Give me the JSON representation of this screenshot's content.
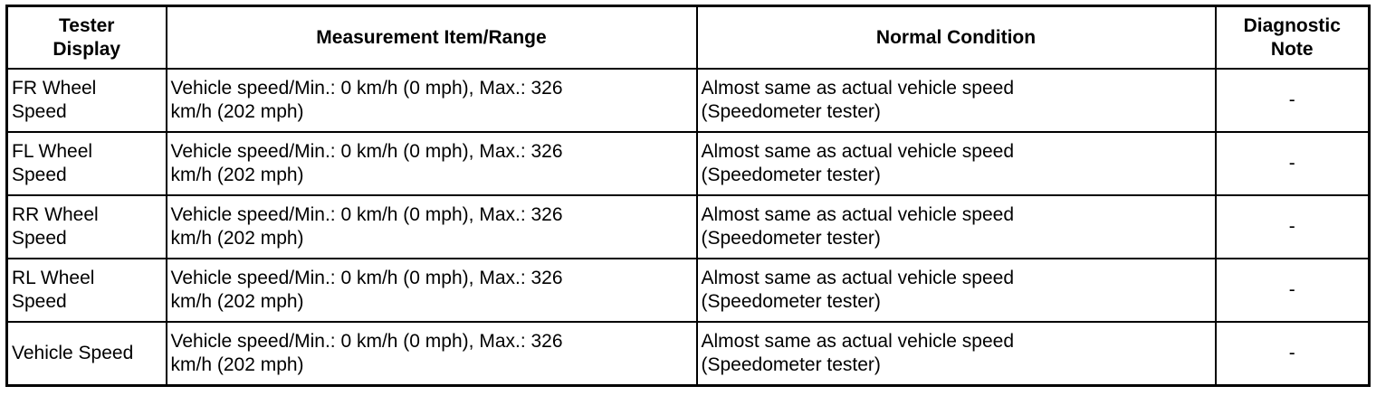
{
  "table": {
    "header": [
      "Tester\nDisplay",
      "Measurement Item/Range",
      "Normal Condition",
      "Diagnostic\nNote"
    ],
    "rows": [
      [
        "FR Wheel\nSpeed",
        "Vehicle speed/Min.: 0 km/h (0 mph), Max.: 326\nkm/h (202 mph)",
        "Almost same as actual vehicle speed\n(Speedometer tester)",
        "-"
      ],
      [
        "FL Wheel\nSpeed",
        "Vehicle speed/Min.: 0 km/h (0 mph), Max.: 326\nkm/h (202 mph)",
        "Almost same as actual vehicle speed\n(Speedometer tester)",
        "-"
      ],
      [
        "RR Wheel\nSpeed",
        "Vehicle speed/Min.: 0 km/h (0 mph), Max.: 326\nkm/h (202 mph)",
        "Almost same as actual vehicle speed\n(Speedometer tester)",
        "-"
      ],
      [
        "RL Wheel\nSpeed",
        "Vehicle speed/Min.: 0 km/h (0 mph), Max.: 326\nkm/h (202 mph)",
        "Almost same as actual vehicle speed\n(Speedometer tester)",
        "-"
      ],
      [
        "Vehicle Speed",
        "Vehicle speed/Min.: 0 km/h (0 mph), Max.: 326\nkm/h (202 mph)",
        "Almost same as actual vehicle speed\n(Speedometer tester)",
        "-"
      ]
    ]
  }
}
